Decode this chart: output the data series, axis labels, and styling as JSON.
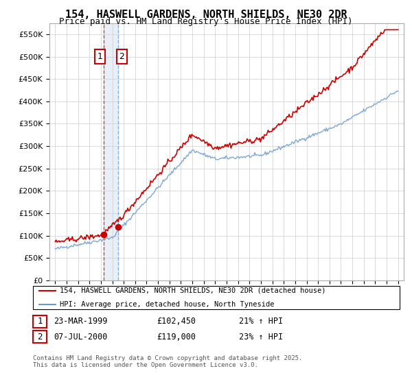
{
  "title": "154, HASWELL GARDENS, NORTH SHIELDS, NE30 2DR",
  "subtitle": "Price paid vs. HM Land Registry's House Price Index (HPI)",
  "legend_line1": "154, HASWELL GARDENS, NORTH SHIELDS, NE30 2DR (detached house)",
  "legend_line2": "HPI: Average price, detached house, North Tyneside",
  "footnote": "Contains HM Land Registry data © Crown copyright and database right 2025.\nThis data is licensed under the Open Government Licence v3.0.",
  "purchase1_date": "23-MAR-1999",
  "purchase1_price": 102450,
  "purchase1_hpi": "21% ↑ HPI",
  "purchase2_date": "07-JUL-2000",
  "purchase2_price": 119000,
  "purchase2_hpi": "23% ↑ HPI",
  "purchase1_year": 1999.22,
  "purchase2_year": 2000.52,
  "ylim": [
    0,
    575000
  ],
  "ytick_step": 50000,
  "red_color": "#cc0000",
  "blue_color": "#6699cc",
  "bg_color": "#ffffff",
  "grid_color": "#cccccc"
}
